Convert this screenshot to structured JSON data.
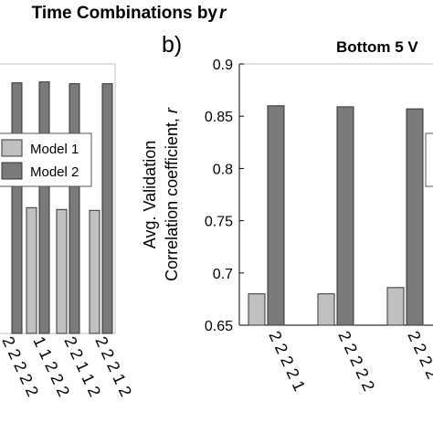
{
  "figure": {
    "title_a": "Time Combinations by ",
    "title_a_var": "r",
    "panel_b_label": "b)",
    "title_b": "Bottom 5 V"
  },
  "colors": {
    "model1": "#c0c0c0",
    "model2": "#7a7a7a",
    "axis": "#000000"
  },
  "chart_data": [
    {
      "type": "bar",
      "panel": "a",
      "title": "Time Combinations by r",
      "legend": {
        "position": "top-right",
        "entries": [
          "Model 1",
          "Model 2"
        ]
      },
      "categories": [
        [
          "2",
          "2",
          "2",
          "2",
          "2"
        ],
        [
          "1",
          "1",
          "2",
          "2",
          "2"
        ],
        [
          "2",
          "2",
          "1",
          "1",
          "2"
        ],
        [
          "2",
          "2",
          "2",
          "1",
          "2"
        ]
      ],
      "series": [
        {
          "name": "Model 1",
          "values": [
            null,
            0.69,
            0.688,
            0.687
          ]
        },
        {
          "name": "Model 2",
          "values": [
            0.829,
            0.83,
            0.828,
            0.828
          ]
        }
      ],
      "ylim": [
        0.55,
        0.85
      ]
    },
    {
      "type": "bar",
      "panel": "b",
      "title": "Bottom 5 V",
      "ylabel_line1": "Avg. Validation",
      "ylabel_line2": "Correlation coefficient, ",
      "ylabel_var": "r",
      "yticks": [
        "0.65",
        "0.7",
        "0.75",
        "0.8",
        "0.85",
        "0.9"
      ],
      "categories": [
        [
          "2",
          "2",
          "2",
          "2",
          "1"
        ],
        [
          "2",
          "2",
          "2",
          "2",
          "2"
        ],
        [
          "2",
          "2",
          "2",
          "2"
        ]
      ],
      "series": [
        {
          "name": "Model 1",
          "values": [
            0.68,
            0.68,
            0.686
          ]
        },
        {
          "name": "Model 2",
          "values": [
            0.86,
            0.859,
            0.857
          ]
        }
      ],
      "ylim": [
        0.65,
        0.9
      ]
    }
  ]
}
